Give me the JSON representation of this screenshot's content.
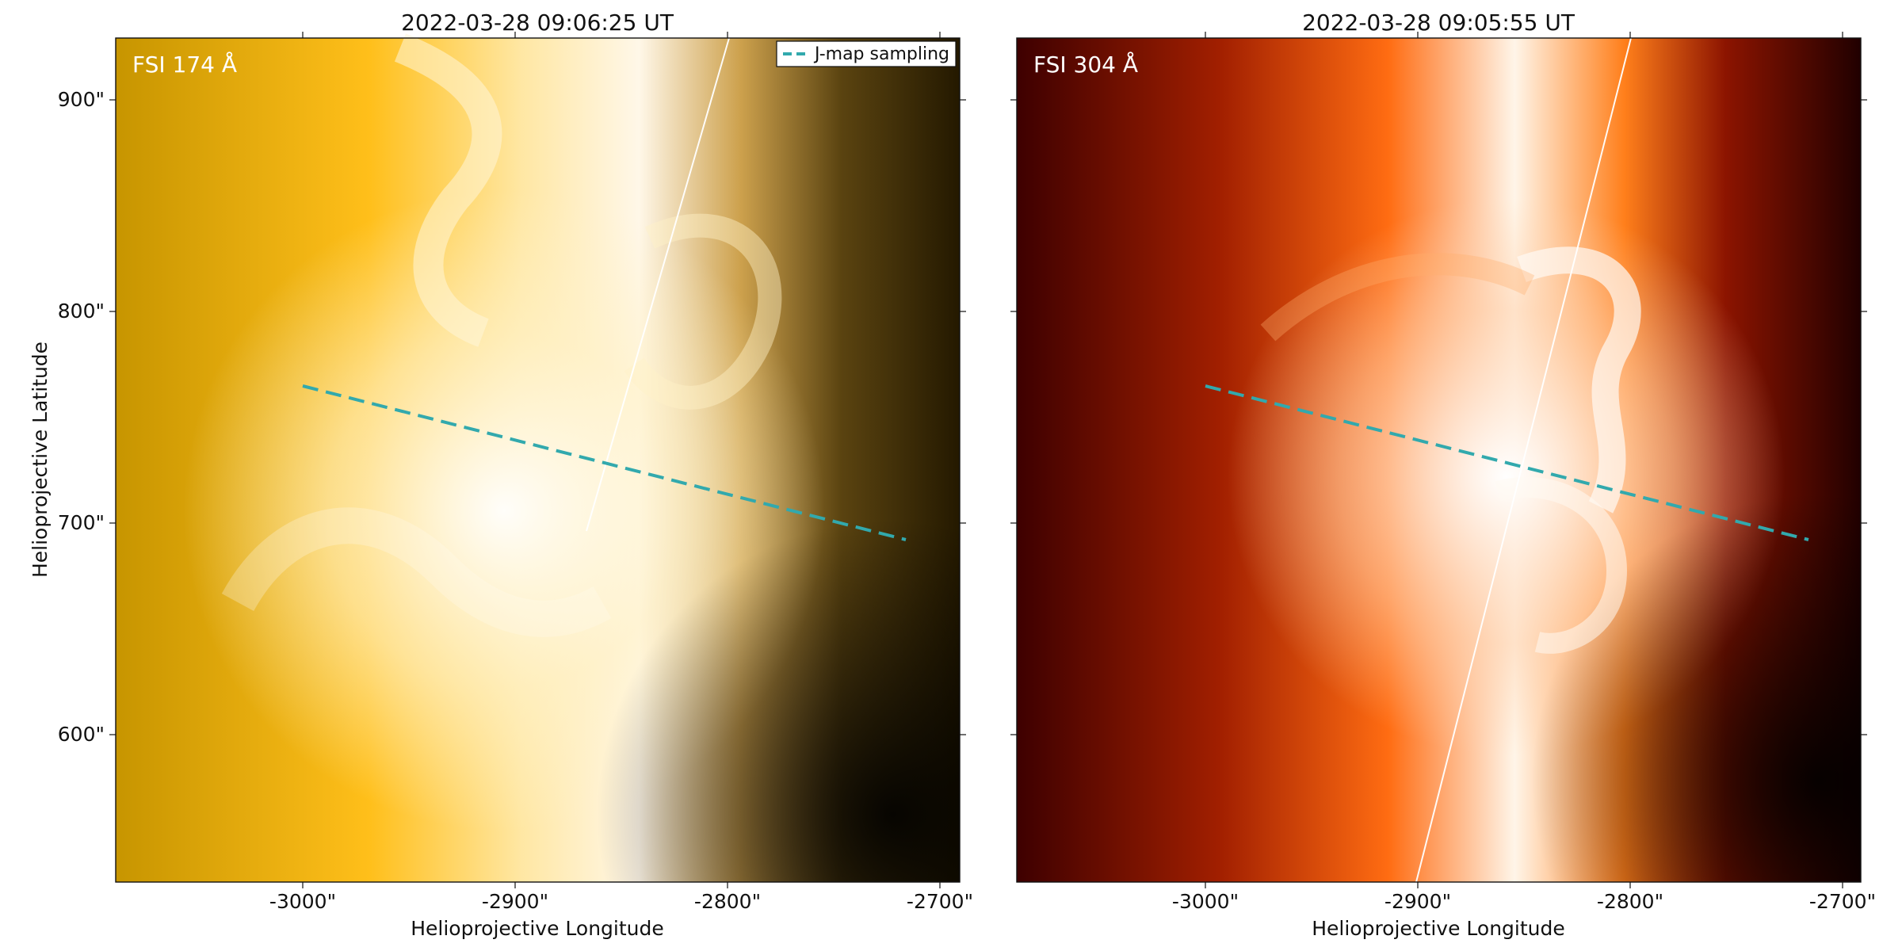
{
  "figure": {
    "left_panel": {
      "title": "2022-03-28 09:06:25 UT",
      "channel_label": "FSI 174 Å",
      "legend_label": "J-map sampling",
      "x_ticks": [
        "-3000\"",
        "-2900\"",
        "-2800\"",
        "-2700\""
      ],
      "y_ticks": [
        "900\"",
        "800\"",
        "700\"",
        "600\""
      ],
      "xlabel": "Helioprojective Longitude",
      "ylabel": "Helioprojective Latitude"
    },
    "right_panel": {
      "title": "2022-03-28 09:05:55 UT",
      "channel_label": "FSI 304 Å",
      "x_ticks": [
        "-3000\"",
        "-2900\"",
        "-2800\"",
        "-2700\""
      ],
      "xlabel": "Helioprojective Longitude"
    },
    "colors": {
      "sampling_line": "#32a9ad",
      "white": "#ffffff"
    }
  }
}
